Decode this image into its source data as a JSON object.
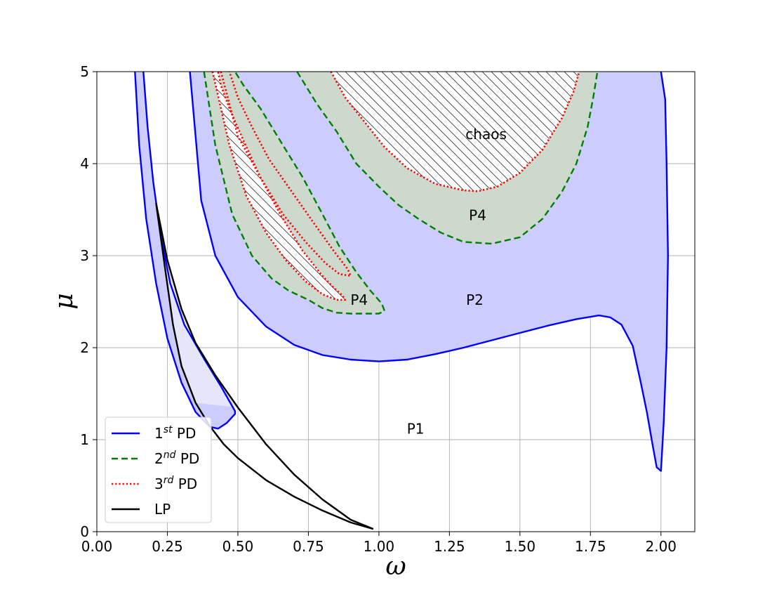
{
  "chart_data": {
    "type": "line",
    "title": "",
    "xlabel": "ω",
    "ylabel": "μ",
    "xlim": [
      0,
      2.12
    ],
    "ylim": [
      0,
      5
    ],
    "xticks": [
      "0.00",
      "0.25",
      "0.50",
      "0.75",
      "1.00",
      "1.25",
      "1.50",
      "1.75",
      "2.00"
    ],
    "xtick_values": [
      0,
      0.25,
      0.5,
      0.75,
      1.0,
      1.25,
      1.5,
      1.75,
      2.0
    ],
    "yticks": [
      "0",
      "1",
      "2",
      "3",
      "4",
      "5"
    ],
    "ytick_values": [
      0,
      1,
      2,
      3,
      4,
      5
    ],
    "grid": true,
    "legend_position": "lower-left",
    "legend": [
      {
        "base": "1",
        "sup": "st",
        "suffix": " PD",
        "color": "#0000ff",
        "style": "solid"
      },
      {
        "base": "2",
        "sup": "nd",
        "suffix": " PD",
        "color": "#008000",
        "style": "dashed"
      },
      {
        "base": "3",
        "sup": "rd",
        "suffix": " PD",
        "color": "#ff0000",
        "style": "dotted"
      },
      {
        "base": "LP",
        "sup": "",
        "suffix": "",
        "color": "#000000",
        "style": "solid"
      }
    ],
    "annotations": [
      {
        "text": "chaos",
        "x": 1.38,
        "y": 4.32
      },
      {
        "text": "P4",
        "x": 1.35,
        "y": 3.44
      },
      {
        "text": "P2",
        "x": 1.34,
        "y": 2.52
      },
      {
        "text": "P4",
        "x": 0.93,
        "y": 2.52
      },
      {
        "text": "P1",
        "x": 1.13,
        "y": 1.12
      }
    ],
    "series": [
      {
        "key": "pd1_main",
        "color": "#0000ff",
        "style": "solid",
        "fill": "#ccccff",
        "x": [
          0.33,
          0.37,
          0.42,
          0.5,
          0.6,
          0.7,
          0.8,
          0.9,
          1.0,
          1.1,
          1.2,
          1.3,
          1.4,
          1.5,
          1.6,
          1.7,
          1.78,
          1.82,
          1.86,
          1.9,
          1.93,
          1.95,
          1.97,
          1.985,
          2.0,
          2.01,
          2.02,
          2.025,
          2.02,
          2.015,
          2.0
        ],
        "y": [
          5.0,
          3.6,
          3.0,
          2.55,
          2.23,
          2.03,
          1.92,
          1.87,
          1.85,
          1.87,
          1.93,
          2.0,
          2.08,
          2.16,
          2.24,
          2.31,
          2.35,
          2.33,
          2.25,
          2.02,
          1.6,
          1.3,
          0.95,
          0.7,
          0.66,
          1.2,
          2.0,
          3.0,
          4.0,
          4.7,
          5.0
        ]
      },
      {
        "key": "pd1_left",
        "color": "#0000ff",
        "style": "solid",
        "fill": "#ccccff",
        "x": [
          0.135,
          0.15,
          0.175,
          0.21,
          0.25,
          0.3,
          0.35,
          0.4,
          0.43,
          0.46,
          0.49,
          0.49,
          0.44,
          0.38,
          0.31,
          0.26,
          0.225,
          0.2,
          0.18,
          0.165
        ],
        "y": [
          5.0,
          4.2,
          3.4,
          2.7,
          2.1,
          1.62,
          1.3,
          1.14,
          1.12,
          1.18,
          1.28,
          1.31,
          1.58,
          1.88,
          2.25,
          2.7,
          3.25,
          3.8,
          4.4,
          5.0
        ]
      },
      {
        "key": "pd2_upper",
        "color": "#008000",
        "style": "dashed",
        "fill": "#ccd9cc",
        "x": [
          0.71,
          0.78,
          0.85,
          0.92,
          1.0,
          1.07,
          1.14,
          1.22,
          1.3,
          1.4,
          1.5,
          1.58,
          1.65,
          1.7,
          1.74,
          1.76,
          1.775
        ],
        "y": [
          5.0,
          4.65,
          4.35,
          4.0,
          3.75,
          3.55,
          3.4,
          3.25,
          3.15,
          3.13,
          3.2,
          3.4,
          3.7,
          4.0,
          4.4,
          4.72,
          5.0
        ]
      },
      {
        "key": "pd2_lower",
        "color": "#008000",
        "style": "dashed",
        "fill": "#ccd9cc",
        "x": [
          0.38,
          0.42,
          0.48,
          0.55,
          0.62,
          0.68,
          0.75,
          0.8,
          0.85,
          0.9,
          0.96,
          1.0,
          1.02,
          1.01,
          0.97,
          0.92,
          0.86,
          0.8,
          0.73,
          0.65,
          0.58,
          0.52,
          0.49
        ],
        "y": [
          5.0,
          4.2,
          3.45,
          3.0,
          2.75,
          2.62,
          2.52,
          2.43,
          2.38,
          2.37,
          2.37,
          2.37,
          2.4,
          2.48,
          2.62,
          2.82,
          3.1,
          3.45,
          3.85,
          4.25,
          4.6,
          4.85,
          5.0
        ]
      },
      {
        "key": "pd3_upper",
        "color": "#ff0000",
        "style": "dotted",
        "fill": "none",
        "x": [
          0.83,
          0.88,
          0.95,
          1.02,
          1.1,
          1.2,
          1.3,
          1.35,
          1.42,
          1.5,
          1.58,
          1.65,
          1.69,
          1.71
        ],
        "y": [
          5.0,
          4.72,
          4.45,
          4.18,
          3.95,
          3.78,
          3.71,
          3.7,
          3.75,
          3.9,
          4.15,
          4.5,
          4.78,
          5.0
        ]
      },
      {
        "key": "pd3_lower",
        "color": "#ff0000",
        "style": "dotted",
        "fill": "none",
        "x": [
          0.41,
          0.47,
          0.53,
          0.6,
          0.67,
          0.74,
          0.8,
          0.85,
          0.88,
          0.87,
          0.84,
          0.8,
          0.73,
          0.65,
          0.58,
          0.52,
          0.47,
          0.44,
          0.43
        ],
        "y": [
          5.0,
          4.2,
          3.65,
          3.25,
          2.95,
          2.72,
          2.58,
          2.52,
          2.52,
          2.57,
          2.65,
          2.78,
          3.05,
          3.45,
          3.85,
          4.25,
          4.6,
          4.85,
          5.0
        ]
      },
      {
        "key": "pd3_inner",
        "color": "#ff0000",
        "style": "dotted",
        "fill": "none",
        "x": [
          0.44,
          0.5,
          0.58,
          0.66,
          0.74,
          0.81,
          0.86,
          0.9,
          0.89,
          0.84,
          0.77,
          0.69,
          0.61,
          0.55,
          0.5,
          0.47
        ],
        "y": [
          5.0,
          4.3,
          3.85,
          3.45,
          3.15,
          2.92,
          2.8,
          2.78,
          2.85,
          3.05,
          3.35,
          3.7,
          4.05,
          4.4,
          4.72,
          5.0
        ]
      },
      {
        "key": "lp_upper",
        "color": "#000000",
        "style": "solid",
        "fill": "none",
        "x": [
          0.21,
          0.25,
          0.3,
          0.35,
          0.42,
          0.5,
          0.6,
          0.7,
          0.8,
          0.9,
          0.98
        ],
        "y": [
          3.57,
          2.95,
          2.42,
          2.05,
          1.7,
          1.35,
          0.95,
          0.62,
          0.35,
          0.13,
          0.03
        ]
      },
      {
        "key": "lp_lower",
        "color": "#000000",
        "style": "solid",
        "fill": "none",
        "x": [
          0.21,
          0.24,
          0.27,
          0.3,
          0.35,
          0.4,
          0.45,
          0.5,
          0.6,
          0.7,
          0.8,
          0.9,
          0.98
        ],
        "y": [
          3.57,
          2.9,
          2.25,
          1.8,
          1.4,
          1.15,
          0.95,
          0.8,
          0.56,
          0.38,
          0.23,
          0.1,
          0.03
        ]
      }
    ]
  }
}
